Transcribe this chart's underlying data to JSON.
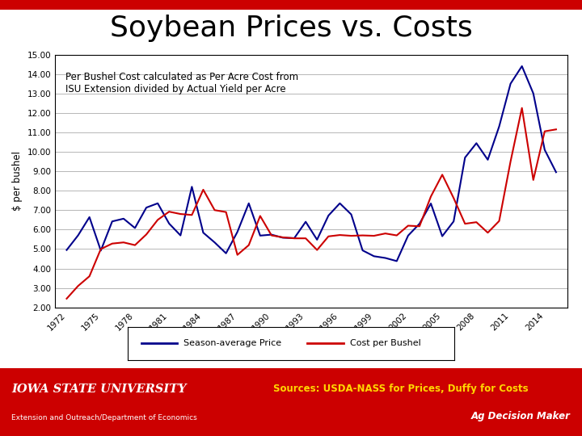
{
  "title": "Soybean Prices vs. Costs",
  "annotation": "Per Bushel Cost calculated as Per Acre Cost from\nISU Extension divided by Actual Yield per Acre",
  "ylabel": "$ per bushel",
  "ylim": [
    2.0,
    15.0
  ],
  "yticks": [
    2.0,
    3.0,
    4.0,
    5.0,
    6.0,
    7.0,
    8.0,
    9.0,
    10.0,
    11.0,
    12.0,
    13.0,
    14.0,
    15.0
  ],
  "years": [
    1972,
    1973,
    1974,
    1975,
    1976,
    1977,
    1978,
    1979,
    1980,
    1981,
    1982,
    1983,
    1984,
    1985,
    1986,
    1987,
    1988,
    1989,
    1990,
    1991,
    1992,
    1993,
    1994,
    1995,
    1996,
    1997,
    1998,
    1999,
    2000,
    2001,
    2002,
    2003,
    2004,
    2005,
    2006,
    2007,
    2008,
    2009,
    2010,
    2011,
    2012,
    2013,
    2014,
    2015
  ],
  "price": [
    4.95,
    5.7,
    6.64,
    4.92,
    6.42,
    6.56,
    6.08,
    7.13,
    7.35,
    6.31,
    5.7,
    8.2,
    5.84,
    5.34,
    4.78,
    5.88,
    7.35,
    5.69,
    5.74,
    5.58,
    5.56,
    6.4,
    5.48,
    6.72,
    7.35,
    6.78,
    4.93,
    4.63,
    4.54,
    4.38,
    5.69,
    6.3,
    7.34,
    5.66,
    6.42,
    9.7,
    10.44,
    9.59,
    11.3,
    13.5,
    14.4,
    13.0,
    10.1,
    8.95
  ],
  "cost": [
    2.45,
    3.1,
    3.6,
    5.0,
    5.28,
    5.34,
    5.2,
    5.75,
    6.5,
    6.92,
    6.8,
    6.75,
    8.05,
    7.0,
    6.9,
    4.7,
    5.2,
    6.7,
    5.7,
    5.6,
    5.55,
    5.55,
    4.95,
    5.65,
    5.72,
    5.68,
    5.7,
    5.68,
    5.8,
    5.7,
    6.2,
    6.17,
    7.7,
    8.82,
    7.62,
    6.3,
    6.38,
    5.84,
    6.44,
    9.5,
    12.25,
    8.55,
    11.05,
    11.15
  ],
  "price_color": "#00008B",
  "cost_color": "#CC0000",
  "legend_labels": [
    "Season-average Price",
    "Cost per Bushel"
  ],
  "xtick_years": [
    1972,
    1975,
    1978,
    1981,
    1984,
    1987,
    1990,
    1993,
    1996,
    1999,
    2002,
    2005,
    2008,
    2011,
    2014
  ],
  "bg_color": "#FFFFFF",
  "plot_bg": "#FFFFFF",
  "title_fontsize": 26,
  "footer_bg": "#CC0000",
  "footer_text_isu": "IOWA STATE UNIVERSITY",
  "footer_text_sources": "Sources: USDA-NASS for Prices, Duffy for Costs",
  "footer_text_dept": "Extension and Outreach/Department of Economics",
  "footer_text_adm": "Ag Decision Maker"
}
